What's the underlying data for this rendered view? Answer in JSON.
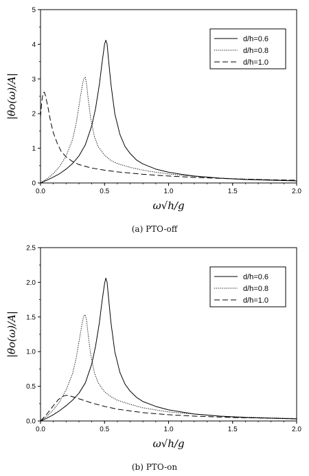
{
  "chart_data": [
    {
      "type": "line",
      "caption": "(a) PTO-off",
      "xlabel": "ω√h/g",
      "ylabel": "|θo(ω)/A|",
      "xlim": [
        0,
        2.0
      ],
      "ylim": [
        0,
        5
      ],
      "xticks": [
        "0.0",
        "0.5",
        "1.0",
        "1.5",
        "2.0"
      ],
      "yticks": [
        "0",
        "1",
        "2",
        "3",
        "4",
        "5"
      ],
      "legend": "top-right",
      "grid": false,
      "series": [
        {
          "name": "d/h=0.6",
          "style": "solid",
          "x": [
            0,
            0.05,
            0.1,
            0.15,
            0.2,
            0.25,
            0.3,
            0.35,
            0.4,
            0.43,
            0.46,
            0.48,
            0.5,
            0.51,
            0.52,
            0.53,
            0.55,
            0.58,
            0.62,
            0.66,
            0.7,
            0.75,
            0.8,
            0.9,
            1.0,
            1.1,
            1.2,
            1.3,
            1.4,
            1.5,
            1.6,
            1.8,
            2.0
          ],
          "y": [
            0,
            0.08,
            0.17,
            0.27,
            0.4,
            0.56,
            0.78,
            1.1,
            1.65,
            2.15,
            2.85,
            3.45,
            4.0,
            4.12,
            4.0,
            3.6,
            2.85,
            2.0,
            1.4,
            1.05,
            0.85,
            0.66,
            0.55,
            0.4,
            0.31,
            0.25,
            0.2,
            0.17,
            0.14,
            0.12,
            0.1,
            0.08,
            0.06
          ]
        },
        {
          "name": "d/h=0.8",
          "style": "dotted",
          "x": [
            0,
            0.05,
            0.1,
            0.15,
            0.2,
            0.25,
            0.28,
            0.31,
            0.33,
            0.34,
            0.35,
            0.36,
            0.37,
            0.39,
            0.42,
            0.45,
            0.5,
            0.55,
            0.6,
            0.7,
            0.8,
            0.9,
            1.0,
            1.2,
            1.4,
            1.6,
            1.8,
            2.0
          ],
          "y": [
            0,
            0.12,
            0.27,
            0.48,
            0.78,
            1.25,
            1.75,
            2.45,
            2.9,
            3.02,
            3.05,
            2.85,
            2.5,
            1.9,
            1.35,
            1.05,
            0.8,
            0.65,
            0.56,
            0.45,
            0.37,
            0.31,
            0.26,
            0.19,
            0.14,
            0.11,
            0.09,
            0.07
          ]
        },
        {
          "name": "d/h=1.0",
          "style": "dashed",
          "x": [
            0,
            0.01,
            0.02,
            0.03,
            0.04,
            0.06,
            0.08,
            0.1,
            0.13,
            0.16,
            0.2,
            0.25,
            0.3,
            0.4,
            0.5,
            0.6,
            0.8,
            1.0,
            1.2,
            1.5,
            1.8,
            2.0
          ],
          "y": [
            1.9,
            2.35,
            2.6,
            2.62,
            2.5,
            2.15,
            1.75,
            1.45,
            1.15,
            0.92,
            0.75,
            0.62,
            0.53,
            0.43,
            0.37,
            0.32,
            0.25,
            0.2,
            0.16,
            0.12,
            0.09,
            0.08
          ]
        }
      ]
    },
    {
      "type": "line",
      "caption": "(b) PTO-on",
      "xlabel": "ω√h/g",
      "ylabel": "|θo(ω)/A|",
      "xlim": [
        0,
        2.0
      ],
      "ylim": [
        0,
        2.5
      ],
      "xticks": [
        "0.0",
        "0.5",
        "1.0",
        "1.5",
        "2.0"
      ],
      "yticks": [
        "0.0",
        "0.5",
        "1.0",
        "1.5",
        "2.0",
        "2.5"
      ],
      "legend": "top-right",
      "grid": false,
      "series": [
        {
          "name": "d/h=0.6",
          "style": "solid",
          "x": [
            0,
            0.05,
            0.1,
            0.15,
            0.2,
            0.25,
            0.3,
            0.35,
            0.4,
            0.43,
            0.46,
            0.48,
            0.5,
            0.51,
            0.52,
            0.53,
            0.55,
            0.58,
            0.62,
            0.66,
            0.7,
            0.75,
            0.8,
            0.9,
            1.0,
            1.1,
            1.2,
            1.3,
            1.4,
            1.5,
            1.6,
            1.8,
            2.0
          ],
          "y": [
            0,
            0.04,
            0.09,
            0.15,
            0.22,
            0.3,
            0.4,
            0.55,
            0.82,
            1.08,
            1.42,
            1.72,
            1.98,
            2.06,
            2.0,
            1.8,
            1.42,
            1.0,
            0.7,
            0.53,
            0.43,
            0.34,
            0.28,
            0.21,
            0.16,
            0.13,
            0.1,
            0.085,
            0.07,
            0.06,
            0.05,
            0.04,
            0.03
          ]
        },
        {
          "name": "d/h=0.8",
          "style": "dotted",
          "x": [
            0,
            0.05,
            0.1,
            0.15,
            0.2,
            0.25,
            0.28,
            0.31,
            0.33,
            0.34,
            0.35,
            0.36,
            0.37,
            0.39,
            0.42,
            0.45,
            0.5,
            0.55,
            0.6,
            0.7,
            0.8,
            0.9,
            1.0,
            1.2,
            1.4,
            1.6,
            1.8,
            2.0
          ],
          "y": [
            0,
            0.07,
            0.16,
            0.28,
            0.45,
            0.68,
            0.92,
            1.25,
            1.46,
            1.52,
            1.53,
            1.45,
            1.28,
            0.98,
            0.7,
            0.55,
            0.42,
            0.35,
            0.3,
            0.24,
            0.19,
            0.16,
            0.13,
            0.1,
            0.07,
            0.055,
            0.045,
            0.035
          ]
        },
        {
          "name": "d/h=1.0",
          "style": "dashed",
          "x": [
            0,
            0.05,
            0.1,
            0.14,
            0.18,
            0.2,
            0.22,
            0.25,
            0.3,
            0.35,
            0.4,
            0.5,
            0.6,
            0.8,
            1.0,
            1.2,
            1.5,
            1.8,
            2.0
          ],
          "y": [
            0,
            0.1,
            0.22,
            0.31,
            0.36,
            0.37,
            0.365,
            0.35,
            0.32,
            0.29,
            0.26,
            0.21,
            0.17,
            0.12,
            0.09,
            0.07,
            0.05,
            0.04,
            0.03
          ]
        }
      ]
    }
  ]
}
